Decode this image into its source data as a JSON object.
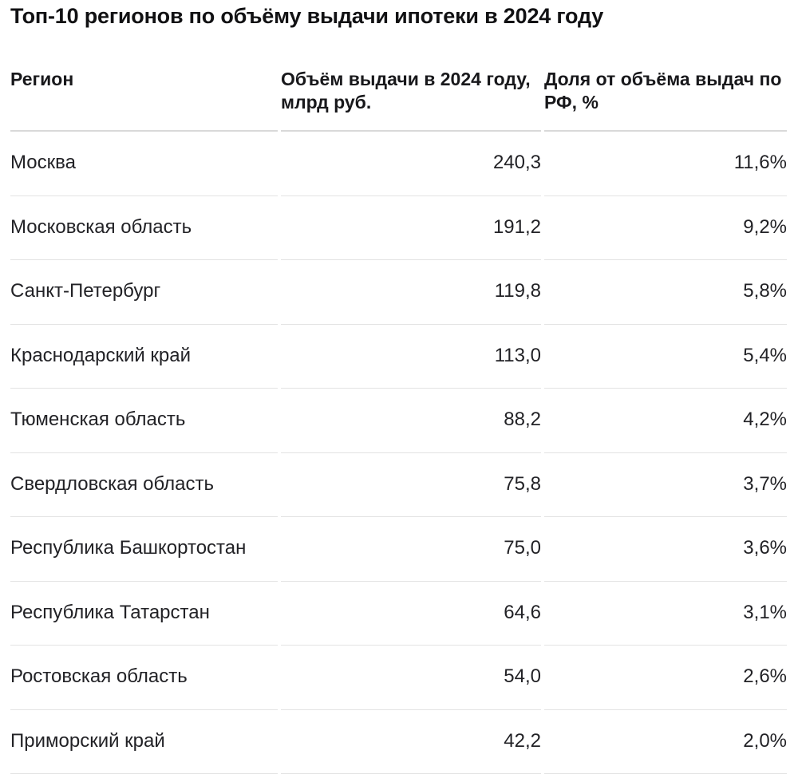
{
  "title": "Топ-10 регионов по объёму выдачи ипотеки в 2024 году",
  "table": {
    "columns": [
      {
        "label": "Регион"
      },
      {
        "label": "Объём выдачи в 2024 году, млрд руб."
      },
      {
        "label": "Доля от объёма выдач по РФ, %"
      }
    ],
    "rows": [
      {
        "region": "Москва",
        "volume": "240,3",
        "share": "11,6%"
      },
      {
        "region": "Московская область",
        "volume": "191,2",
        "share": "9,2%"
      },
      {
        "region": "Санкт-Петербург",
        "volume": "119,8",
        "share": "5,8%"
      },
      {
        "region": "Краснодарский край",
        "volume": "113,0",
        "share": "5,4%"
      },
      {
        "region": "Тюменская область",
        "volume": "88,2",
        "share": "4,2%"
      },
      {
        "region": "Свердловская область",
        "volume": "75,8",
        "share": "3,7%"
      },
      {
        "region": "Республика Башкортостан",
        "volume": "75,0",
        "share": "3,6%"
      },
      {
        "region": "Республика Татарстан",
        "volume": "64,6",
        "share": "3,1%"
      },
      {
        "region": "Ростовская область",
        "volume": "54,0",
        "share": "2,6%"
      },
      {
        "region": "Приморский край",
        "volume": "42,2",
        "share": "2,0%"
      }
    ]
  },
  "colors": {
    "title_text": "#111113",
    "header_text": "#18181b",
    "body_text": "#222226",
    "header_divider": "#d9d9d9",
    "row_divider": "#e3e3e3",
    "background": "#ffffff"
  },
  "chart_data": {
    "type": "table",
    "title": "Топ-10 регионов по объёму выдачи ипотеки в 2024 году",
    "columns": [
      "Регион",
      "Объём выдачи в 2024 году, млрд руб.",
      "Доля от объёма выдач по РФ, %"
    ],
    "rows": [
      [
        "Москва",
        240.3,
        11.6
      ],
      [
        "Московская область",
        191.2,
        9.2
      ],
      [
        "Санкт-Петербург",
        119.8,
        5.8
      ],
      [
        "Краснодарский край",
        113.0,
        5.4
      ],
      [
        "Тюменская область",
        88.2,
        4.2
      ],
      [
        "Свердловская область",
        75.8,
        3.7
      ],
      [
        "Республика Башкортостан",
        75.0,
        3.6
      ],
      [
        "Республика Татарстан",
        64.6,
        3.1
      ],
      [
        "Ростовская область",
        54.0,
        2.6
      ],
      [
        "Приморский край",
        42.2,
        2.0
      ]
    ],
    "value_format": "russian decimal comma",
    "units": {
      "volume": "млрд руб.",
      "share": "% от выдач по РФ"
    }
  }
}
